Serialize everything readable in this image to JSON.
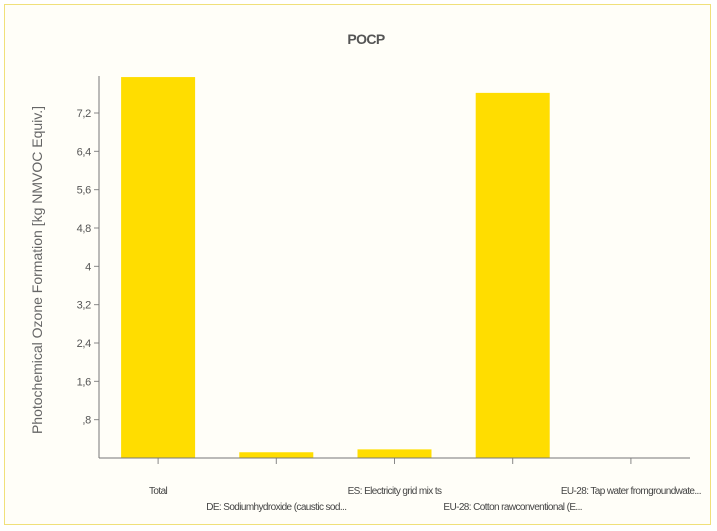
{
  "chart_data": {
    "type": "bar",
    "title": "POCP",
    "ylabel": "Photochemical Ozone Formation [kg NMVOC Equiv.]",
    "xlabel": "",
    "categories": [
      "Total",
      "DE: Sodiumhydroxide (caustic sod...",
      "ES: Electricity grid mix ts",
      "EU-28: Cotton rawconventional (E...",
      "EU-28: Tap water fromgroundwate..."
    ],
    "values": [
      7.95,
      0.12,
      0.18,
      7.62,
      0.005
    ],
    "ylim": [
      0,
      8.2
    ],
    "yticks": [
      0.8,
      1.6,
      2.4,
      3.2,
      4,
      4.8,
      5.6,
      6.4,
      7.2
    ],
    "ytick_labels": [
      ",8",
      "1,6",
      "2,4",
      "3,2",
      "4",
      "4,8",
      "5,6",
      "6,4",
      "7,2"
    ],
    "bar_color": "#ffdd00",
    "grid": false,
    "legend": "none"
  }
}
